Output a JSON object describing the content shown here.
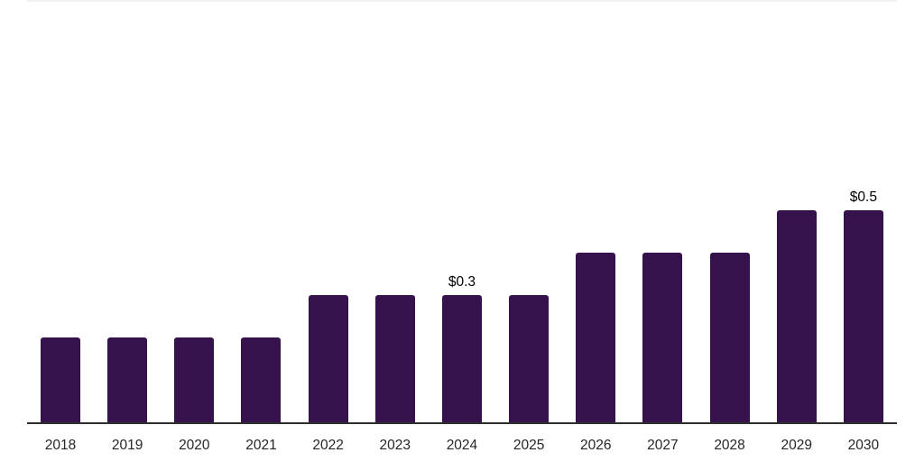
{
  "page": {
    "background_color": "#ffffff"
  },
  "chart_data": {
    "type": "bar",
    "title": "",
    "xlabel": "",
    "ylabel": "",
    "categories": [
      "2018",
      "2019",
      "2020",
      "2021",
      "2022",
      "2023",
      "2024",
      "2025",
      "2026",
      "2027",
      "2028",
      "2029",
      "2030"
    ],
    "values": [
      0.2,
      0.2,
      0.2,
      0.2,
      0.3,
      0.3,
      0.3,
      0.3,
      0.4,
      0.4,
      0.4,
      0.5,
      0.5
    ],
    "data_labels": [
      "",
      "",
      "",
      "",
      "",
      "",
      "$0.3",
      "",
      "",
      "",
      "",
      "",
      "$0.5"
    ],
    "ylim": [
      0,
      1.0
    ],
    "grid": false,
    "legend": false,
    "y_axis_shown": false,
    "bar_color": "#35124B",
    "axis_color": "#2e2e2e",
    "tick_color": "#262626",
    "label_color": "#000000",
    "top_border_color": "#f1f1f4"
  }
}
